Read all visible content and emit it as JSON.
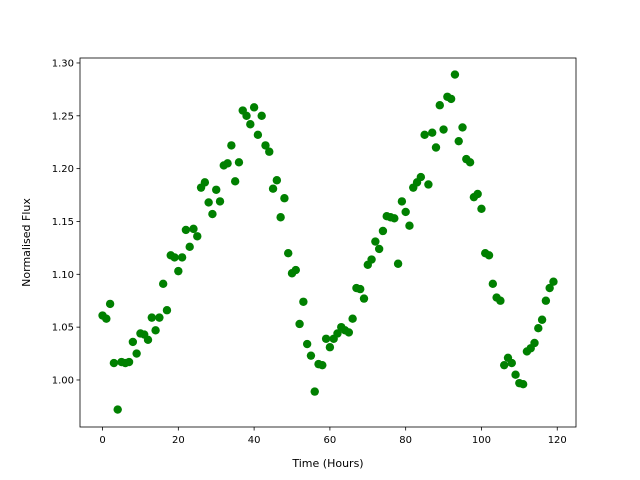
{
  "chart_data": {
    "type": "scatter",
    "x_label": "Time (Hours)",
    "y_label": "Normalised Flux",
    "x": [
      0,
      1,
      2,
      3,
      4,
      5,
      6,
      7,
      8,
      9,
      10,
      11,
      12,
      13,
      14,
      15,
      16,
      17,
      18,
      19,
      20,
      21,
      22,
      23,
      24,
      25,
      26,
      27,
      28,
      29,
      30,
      31,
      32,
      33,
      34,
      35,
      36,
      37,
      38,
      39,
      40,
      41,
      42,
      43,
      44,
      45,
      46,
      47,
      48,
      49,
      50,
      51,
      52,
      53,
      54,
      55,
      56,
      57,
      58,
      59,
      60,
      61,
      62,
      63,
      64,
      65,
      66,
      67,
      68,
      69,
      70,
      71,
      72,
      73,
      74,
      75,
      76,
      77,
      78,
      79,
      80,
      81,
      82,
      83,
      84,
      85,
      86,
      87,
      88,
      89,
      90,
      91,
      92,
      93,
      94,
      95,
      96,
      97,
      98,
      99,
      100,
      101,
      102,
      103,
      104,
      105,
      106,
      107,
      108,
      109,
      110,
      111,
      112,
      113,
      114,
      115,
      116,
      117,
      118,
      119
    ],
    "series": [
      {
        "color": "#008000",
        "values": [
          1.061,
          1.058,
          1.072,
          1.016,
          0.972,
          1.017,
          1.016,
          1.017,
          1.036,
          1.025,
          1.044,
          1.043,
          1.038,
          1.059,
          1.047,
          1.059,
          1.091,
          1.066,
          1.118,
          1.116,
          1.103,
          1.116,
          1.142,
          1.126,
          1.143,
          1.136,
          1.182,
          1.187,
          1.168,
          1.157,
          1.18,
          1.169,
          1.203,
          1.205,
          1.222,
          1.188,
          1.206,
          1.255,
          1.25,
          1.242,
          1.258,
          1.232,
          1.25,
          1.222,
          1.216,
          1.181,
          1.189,
          1.154,
          1.172,
          1.12,
          1.101,
          1.104,
          1.053,
          1.074,
          1.034,
          1.023,
          0.989,
          1.015,
          1.014,
          1.039,
          1.031,
          1.039,
          1.044,
          1.05,
          1.047,
          1.045,
          1.058,
          1.087,
          1.086,
          1.077,
          1.109,
          1.114,
          1.131,
          1.124,
          1.141,
          1.155,
          1.154,
          1.153,
          1.11,
          1.169,
          1.159,
          1.146,
          1.182,
          1.187,
          1.192,
          1.232,
          1.185,
          1.234,
          1.22,
          1.26,
          1.237,
          1.268,
          1.266,
          1.289,
          1.226,
          1.239,
          1.209,
          1.206,
          1.173,
          1.176,
          1.162,
          1.12,
          1.118,
          1.091,
          1.078,
          1.075,
          1.014,
          1.021,
          1.016,
          1.005,
          0.997,
          0.996,
          1.027,
          1.03,
          1.035,
          1.049,
          1.057,
          1.075,
          1.087,
          1.093
        ]
      }
    ],
    "xlim": [
      -5.95,
      124.95
    ],
    "xticks": [
      0,
      20,
      40,
      60,
      80,
      100,
      120
    ],
    "ylim": [
      0.9555,
      1.3047
    ],
    "yticks": [
      {
        "value": 1,
        "label": "1.00"
      },
      1.05,
      {
        "value": 1.1,
        "label": "1.10"
      },
      1.15,
      {
        "value": 1.2,
        "label": "1.20"
      },
      1.25,
      {
        "value": 1.3,
        "label": "1.30"
      }
    ]
  }
}
